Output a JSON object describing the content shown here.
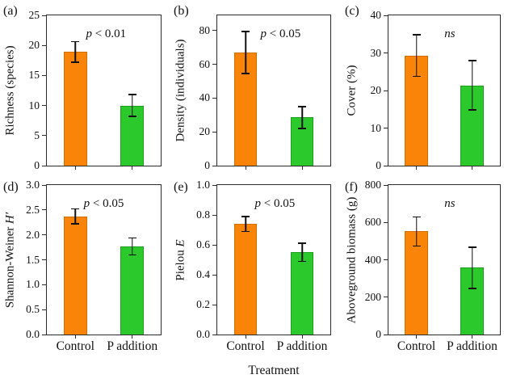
{
  "figure": {
    "shared_xlabel": "Treatment",
    "colors": {
      "bar_control": "#F98408",
      "bar_control_edge": "#D06E00",
      "bar_p_addition": "#2CC92C",
      "bar_p_addition_edge": "#1D9E1D",
      "axis": "#2b2b2b",
      "error_bar": "#111111"
    }
  },
  "chart_data": [
    {
      "id": "a",
      "panel_label": "(a)",
      "type": "bar",
      "ylabel": "Richness (species)",
      "ylabel_italic": "",
      "annotation": "p < 0.01",
      "ylim": [
        0,
        25
      ],
      "ytick_labels": [
        "0",
        "5",
        "10",
        "15",
        "20",
        "25"
      ],
      "categories": [
        "Control",
        "P addition"
      ],
      "values": [
        18.9,
        10.0
      ],
      "errors": [
        1.7,
        1.8
      ],
      "x_labels_visible": false
    },
    {
      "id": "b",
      "panel_label": "(b)",
      "type": "bar",
      "ylabel": "Density (individuals)",
      "ylabel_italic": "",
      "annotation": "p < 0.05",
      "ylim": [
        0,
        89
      ],
      "ytick_labels": [
        "0",
        "20",
        "40",
        "60",
        "80"
      ],
      "categories": [
        "Control",
        "P addition"
      ],
      "values": [
        67.0,
        28.5
      ],
      "errors": [
        12.5,
        6.5
      ],
      "x_labels_visible": false
    },
    {
      "id": "c",
      "panel_label": "(c)",
      "type": "bar",
      "ylabel": "Cover (%)",
      "ylabel_italic": "",
      "annotation": "ns",
      "ylim": [
        0,
        40
      ],
      "ytick_labels": [
        "0",
        "10",
        "20",
        "30",
        "40"
      ],
      "categories": [
        "Control",
        "P addition"
      ],
      "values": [
        29.3,
        21.4
      ],
      "errors": [
        5.5,
        6.6
      ],
      "x_labels_visible": false
    },
    {
      "id": "d",
      "panel_label": "(d)",
      "type": "bar",
      "ylabel": "Shannon-Weiner",
      "ylabel_italic": "H′",
      "annotation": "p < 0.05",
      "ylim": [
        0,
        3.0
      ],
      "ytick_labels": [
        "0.0",
        "0.5",
        "1.0",
        "1.5",
        "2.0",
        "2.5",
        "3.0"
      ],
      "categories": [
        "Control",
        "P addition"
      ],
      "values": [
        2.37,
        1.77
      ],
      "errors": [
        0.15,
        0.17
      ],
      "x_labels_visible": true
    },
    {
      "id": "e",
      "panel_label": "(e)",
      "type": "bar",
      "ylabel": "Pielou",
      "ylabel_italic": "E",
      "annotation": "p < 0.05",
      "ylim": [
        0,
        1.0
      ],
      "ytick_labels": [
        "0.0",
        "0.2",
        "0.4",
        "0.6",
        "0.8",
        "1.0"
      ],
      "categories": [
        "Control",
        "P addition"
      ],
      "values": [
        0.74,
        0.55
      ],
      "errors": [
        0.05,
        0.06
      ],
      "x_labels_visible": true
    },
    {
      "id": "f",
      "panel_label": "(f)",
      "type": "bar",
      "ylabel": "Aboveground biomass (g)",
      "ylabel_italic": "",
      "annotation": "ns",
      "ylim": [
        0,
        800
      ],
      "ytick_labels": [
        "0",
        "200",
        "400",
        "600",
        "800"
      ],
      "categories": [
        "Control",
        "P addition"
      ],
      "values": [
        552,
        357
      ],
      "errors": [
        78,
        110
      ],
      "x_labels_visible": true
    }
  ]
}
